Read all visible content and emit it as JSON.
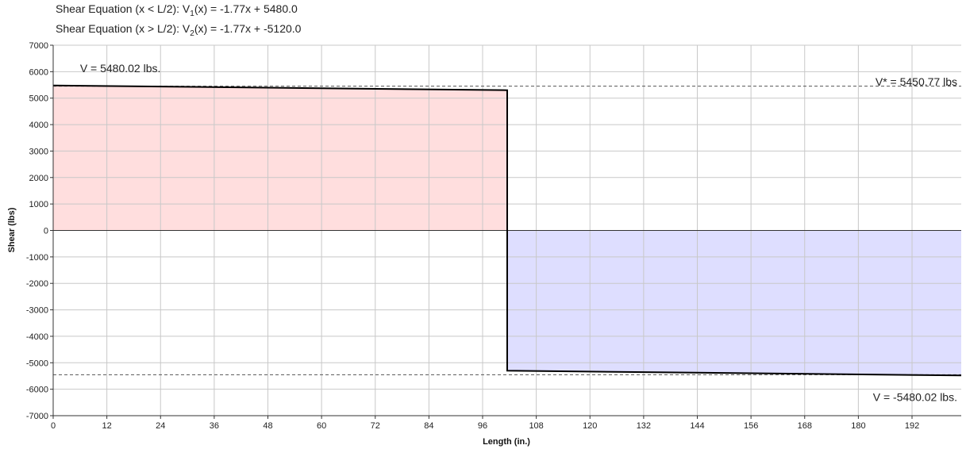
{
  "equations": [
    {
      "prefix": "Shear Equation  (x < L/2):  V",
      "sub": "1",
      "suffix": "(x) = -1.77x + 5480.0"
    },
    {
      "prefix": "Shear Equation  (x > L/2):  V",
      "sub": "2",
      "suffix": "(x) = -1.77x + -5120.0"
    }
  ],
  "chart_data": {
    "type": "line",
    "title": "",
    "xlabel": "Length (in.)",
    "ylabel": "Shear (lbs)",
    "xlim": [
      0,
      203
    ],
    "ylim": [
      -7000,
      7000
    ],
    "x_ticks": [
      0,
      12,
      24,
      36,
      48,
      60,
      72,
      84,
      96,
      108,
      120,
      132,
      144,
      156,
      168,
      180,
      192
    ],
    "y_ticks": [
      7000,
      6000,
      5000,
      4000,
      3000,
      2000,
      1000,
      0,
      -1000,
      -2000,
      -3000,
      -4000,
      -5000,
      -6000,
      -7000
    ],
    "grid": true,
    "series": [
      {
        "x": [
          0,
          101.5,
          101.5,
          203
        ],
        "y": [
          5480.02,
          5300,
          -5300,
          -5480.02
        ],
        "fills": [
          {
            "x_range": [
              0,
              101.5
            ],
            "color": "#ffdede"
          },
          {
            "x_range": [
              101.5,
              203
            ],
            "color": "#dedeff"
          }
        ]
      }
    ],
    "reference_lines": [
      {
        "y": 5450.77,
        "style": "dashed"
      },
      {
        "y": -5450.77,
        "style": "dashed"
      }
    ],
    "annotations": [
      {
        "text": "V = 5480.02 lbs.",
        "x": 6,
        "y": 6130,
        "anchor": "start"
      },
      {
        "text": "V* = 5450.77 lbs",
        "x": 203,
        "y": 5620,
        "anchor": "end"
      },
      {
        "text": "V = -5480.02 lbs.",
        "x": 203,
        "y": -6300,
        "anchor": "end"
      }
    ]
  }
}
